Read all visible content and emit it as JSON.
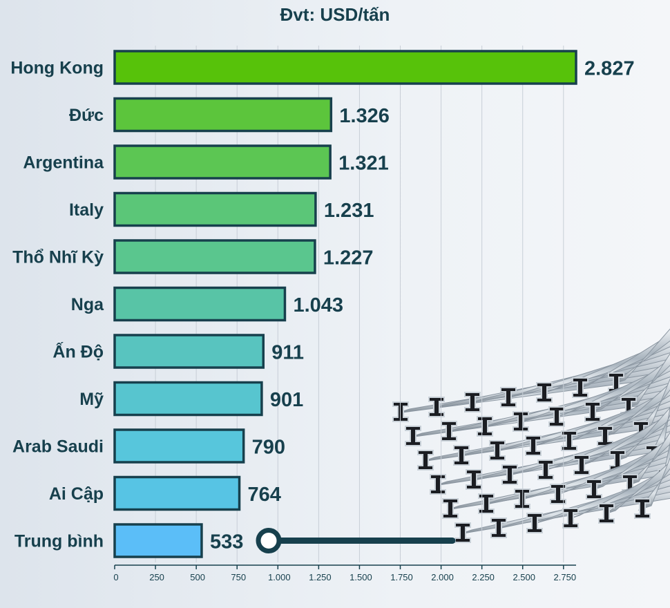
{
  "header": {
    "unit": "Đvt: USD/tấn"
  },
  "colors": {
    "text": "#17404d",
    "outline": "#17404d",
    "grid": "#c7ced6",
    "connector": "#17404d",
    "bars": [
      "#57c20a",
      "#5cc53c",
      "#5cc653",
      "#5bc678",
      "#5ac68e",
      "#58c4a6",
      "#58c4bf",
      "#57c5cf",
      "#57c6dc",
      "#57c4e4",
      "#5bbef8"
    ]
  },
  "decoration": {
    "image": "steel-rails-illustration-icon"
  },
  "chart_data": {
    "type": "bar",
    "orientation": "horizontal",
    "categories": [
      "Hong Kong",
      "Đức",
      "Argentina",
      "Italy",
      "Thổ Nhĩ Kỳ",
      "Nga",
      "Ấn Độ",
      "Mỹ",
      "Arab Saudi",
      "Ai Cập",
      "Trung bình"
    ],
    "values": [
      2827,
      1326,
      1321,
      1231,
      1227,
      1043,
      911,
      901,
      790,
      764,
      533
    ],
    "value_labels": [
      "2.827",
      "1.326",
      "1.321",
      "1.231",
      "1.227",
      "1.043",
      "911",
      "901",
      "790",
      "764",
      "533"
    ],
    "xlim": [
      0,
      2827
    ],
    "xticks": [
      0,
      250,
      500,
      750,
      1000,
      1250,
      1500,
      1750,
      2000,
      2250,
      2500,
      2750
    ],
    "xtick_labels": [
      "0",
      "250",
      "500",
      "750",
      "1.000",
      "1.250",
      "1.500",
      "1.750",
      "2.000",
      "2.250",
      "2.500",
      "2.750"
    ],
    "grid": true,
    "xlabel": "",
    "ylabel": ""
  }
}
